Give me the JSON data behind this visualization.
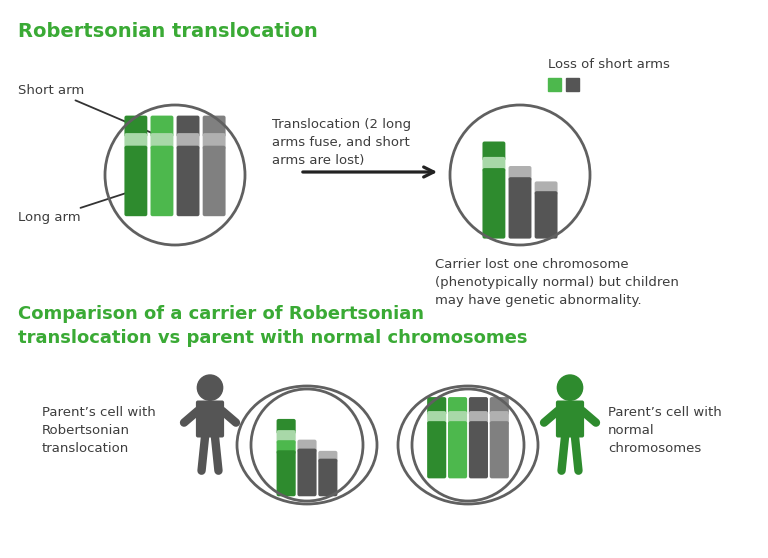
{
  "title1": "Robertsonian translocation",
  "title2": "Comparison of a carrier of Robertsonian\ntranslocation vs parent with normal chromosomes",
  "title_color": "#3aaa35",
  "bg_color": "#ffffff",
  "text_color": "#3d3d3d",
  "green_dark": "#2e8b2e",
  "green_medium": "#4db84d",
  "green_light": "#a8d8a8",
  "gray_dark": "#555555",
  "gray_medium": "#808080",
  "gray_light": "#b0b0b0",
  "circle_color": "#606060",
  "label_short_arm": "Short arm",
  "label_long_arm": "Long arm",
  "label_loss": "Loss of short arms",
  "label_translocation": "Translocation (2 long\narms fuse, and short\narms are lost)",
  "label_carrier": "Carrier lost one chromosome\n(phenotypically normal) but children\nmay have genetic abnormality.",
  "label_parent_carrier": "Parent’s cell with\nRobertsonian\ntranslocation",
  "label_parent_normal": "Parent’s cell with\nnormal\nchromosomes"
}
